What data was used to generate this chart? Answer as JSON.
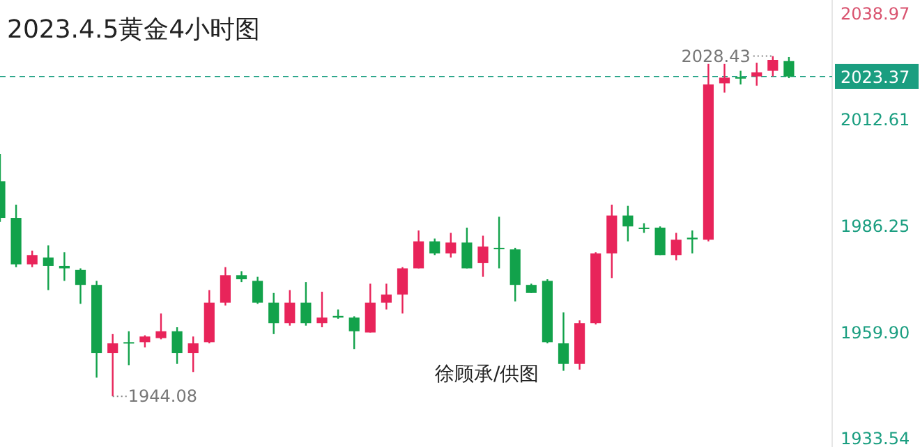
{
  "chart_data": {
    "type": "candlestick",
    "title": "2023.4.5黄金4小时图",
    "categories": [
      null,
      null,
      null,
      null,
      null,
      null,
      null,
      null,
      null,
      null,
      null,
      null,
      null,
      null,
      null,
      null,
      null,
      null,
      null,
      null,
      null,
      null,
      null,
      null,
      null,
      null,
      null,
      null,
      null,
      null,
      null,
      null,
      null,
      null,
      null,
      null,
      null,
      null,
      null,
      null,
      null,
      null,
      null,
      null,
      null,
      null,
      null,
      null,
      null,
      null
    ],
    "ohlc": [
      [
        1997.4,
        2004.2,
        1987.3,
        1988.3
      ],
      [
        1988.3,
        1991.6,
        1976.1,
        1976.8
      ],
      [
        1976.8,
        1980.2,
        1976.1,
        1979.1
      ],
      [
        1978.5,
        1981.5,
        1970.4,
        1976.4
      ],
      [
        1976.4,
        1979.8,
        1972.7,
        1975.8
      ],
      [
        1975.4,
        1975.8,
        1967.0,
        1971.7
      ],
      [
        1971.7,
        1972.7,
        1948.7,
        1954.8
      ],
      [
        1954.8,
        1959.5,
        1944.08,
        1957.2
      ],
      [
        1957.5,
        1960.2,
        1951.8,
        1957.2
      ],
      [
        1957.5,
        1959.2,
        1956.2,
        1958.9
      ],
      [
        1958.5,
        1964.6,
        1958.2,
        1960.2
      ],
      [
        1960.2,
        1961.2,
        1952.1,
        1954.8
      ],
      [
        1954.8,
        1958.9,
        1950.1,
        1957.2
      ],
      [
        1957.5,
        1970.4,
        1957.2,
        1967.3
      ],
      [
        1967.3,
        1976.1,
        1966.6,
        1974.1
      ],
      [
        1974.1,
        1975.1,
        1972.4,
        1973.1
      ],
      [
        1972.7,
        1973.7,
        1967.0,
        1967.3
      ],
      [
        1967.3,
        1969.7,
        1959.5,
        1962.2
      ],
      [
        1962.2,
        1970.4,
        1961.6,
        1967.3
      ],
      [
        1967.3,
        1972.4,
        1961.6,
        1962.2
      ],
      [
        1962.2,
        1970.0,
        1961.2,
        1963.6
      ],
      [
        1964.0,
        1965.6,
        1963.3,
        1963.6
      ],
      [
        1963.6,
        1963.9,
        1955.8,
        1960.2
      ],
      [
        1959.9,
        1972.0,
        1959.9,
        1967.3
      ],
      [
        1967.3,
        1972.0,
        1965.6,
        1969.3
      ],
      [
        1969.3,
        1976.1,
        1964.6,
        1975.8
      ],
      [
        1975.8,
        1985.2,
        1975.8,
        1982.5
      ],
      [
        1982.5,
        1983.2,
        1979.1,
        1979.5
      ],
      [
        1979.5,
        1984.6,
        1978.5,
        1982.2
      ],
      [
        1982.2,
        1985.9,
        1975.8,
        1975.8
      ],
      [
        1977.1,
        1983.9,
        1973.7,
        1981.2
      ],
      [
        1980.9,
        1988.6,
        1975.8,
        1980.6
      ],
      [
        1980.5,
        1980.9,
        1967.6,
        1971.7
      ],
      [
        1971.7,
        1972.0,
        1969.7,
        1969.7
      ],
      [
        1972.7,
        1973.1,
        1957.2,
        1957.5
      ],
      [
        1957.2,
        1964.9,
        1950.4,
        1952.1
      ],
      [
        1952.1,
        1962.9,
        1950.7,
        1962.2
      ],
      [
        1962.2,
        1979.8,
        1961.9,
        1979.5
      ],
      [
        1979.5,
        1991.6,
        1973.4,
        1988.9
      ],
      [
        1988.9,
        1991.3,
        1982.5,
        1986.2
      ],
      [
        1985.9,
        1987.0,
        1984.6,
        1985.6
      ],
      [
        1985.9,
        1986.2,
        1979.1,
        1979.1
      ],
      [
        1979.1,
        1984.6,
        1977.8,
        1982.9
      ],
      [
        1983.4,
        1985.2,
        1979.5,
        1983.0
      ],
      [
        1982.9,
        2026.5,
        1982.5,
        2021.4
      ],
      [
        2021.7,
        2026.5,
        2019.4,
        2023.1
      ],
      [
        2023.2,
        2024.8,
        2021.4,
        2023.0
      ],
      [
        2023.4,
        2026.8,
        2021.1,
        2024.4
      ],
      [
        2024.8,
        2028.43,
        2023.4,
        2027.5
      ],
      [
        2027.2,
        2028.2,
        2023.0,
        2023.37
      ]
    ],
    "ylim": [
      1931.5,
      2042.35
    ],
    "yticks": [
      2038.97,
      2012.61,
      1986.25,
      {
        "value": 1959.9,
        "label": "1959.90"
      },
      1933.54
    ],
    "ref_lines": [
      {
        "axis": "y",
        "value": 2023.37,
        "label": "2023.37",
        "color": "#1a9e80",
        "line_style": "dashed"
      }
    ],
    "annotations": [
      "2028.43",
      "1944.08",
      "徐顾承/供图"
    ]
  }
}
